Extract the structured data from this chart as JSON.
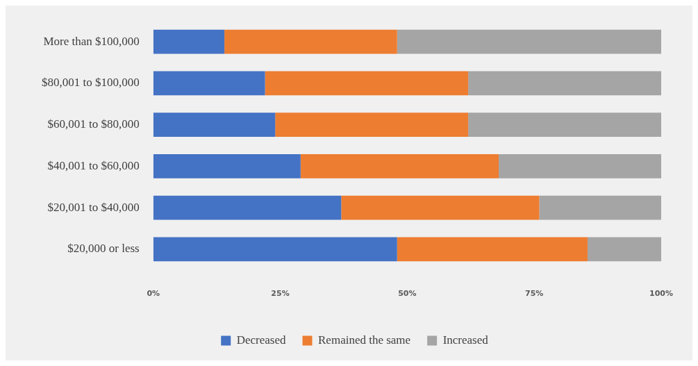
{
  "chart_data": {
    "type": "bar",
    "orientation": "horizontal",
    "stacked": true,
    "categories": [
      "More than $100,000",
      "$80,001 to $100,000",
      "$60,001 to $80,000",
      "$40,001 to $60,000",
      "$20,001 to $40,000",
      "$20,000 or less"
    ],
    "series": [
      {
        "name": "Decreased",
        "color": "#4472c4",
        "values": [
          14,
          22,
          24,
          29,
          37,
          48
        ]
      },
      {
        "name": "Remained the same",
        "color": "#ed7d31",
        "values": [
          34,
          40,
          38,
          39,
          39,
          37.5
        ]
      },
      {
        "name": "Increased",
        "color": "#a5a5a5",
        "values": [
          52,
          38,
          38,
          32,
          24,
          14.5
        ]
      }
    ],
    "xlim": [
      0,
      100
    ],
    "xticks": [
      {
        "value": 0,
        "label": "0%"
      },
      {
        "value": 25,
        "label": "25%"
      },
      {
        "value": 50,
        "label": "50%"
      },
      {
        "value": 75,
        "label": "75%"
      },
      {
        "value": 100,
        "label": "100%"
      }
    ],
    "grid": false,
    "legend": "bottom"
  }
}
